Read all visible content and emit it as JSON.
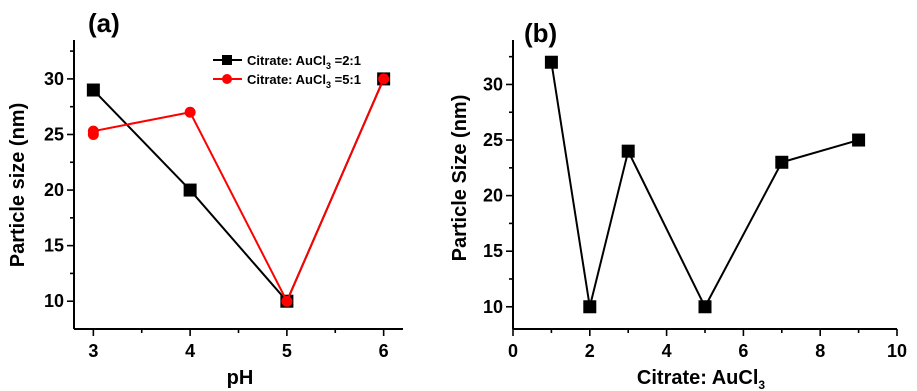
{
  "chart_data": [
    {
      "panel_label": "(a)",
      "type": "line",
      "xlabel": "pH",
      "ylabel": "Particle size (nm)",
      "xlim": [
        2.8,
        6.2
      ],
      "ylim": [
        7.5,
        33.5
      ],
      "xticks": [
        3,
        4,
        5,
        6
      ],
      "yticks": [
        10,
        15,
        20,
        25,
        30
      ],
      "legend_position": "top-right",
      "series": [
        {
          "legend_prefix": "Citrate: AuCl",
          "legend_sub": "3",
          "legend_suffix": " =2:1",
          "color": "#000000",
          "marker": "square",
          "points": [
            [
              3,
              29
            ],
            [
              4,
              20
            ],
            [
              5,
              10
            ],
            [
              6,
              30
            ]
          ]
        },
        {
          "legend_prefix": "Citrate: AuCl",
          "legend_sub": "3",
          "legend_suffix": " =5:1",
          "color": "#ff0000",
          "marker": "circle",
          "points": [
            [
              3,
              25
            ],
            [
              3,
              25.3
            ],
            [
              4,
              27
            ],
            [
              5,
              10
            ],
            [
              6,
              30
            ]
          ]
        }
      ]
    },
    {
      "panel_label": "(b)",
      "type": "line",
      "xlabel_prefix": "Citrate: AuCl",
      "xlabel_sub": "3",
      "ylabel": "Particle Size (nm)",
      "xlim": [
        0,
        10
      ],
      "ylim": [
        8,
        34
      ],
      "xticks": [
        0,
        2,
        4,
        6,
        8,
        10
      ],
      "yticks": [
        10,
        15,
        20,
        25,
        30
      ],
      "series": [
        {
          "color": "#000000",
          "marker": "square",
          "points": [
            [
              1,
              32
            ],
            [
              2,
              10
            ],
            [
              3,
              24
            ],
            [
              5,
              10
            ],
            [
              7,
              23
            ],
            [
              9,
              25
            ]
          ]
        }
      ]
    }
  ]
}
